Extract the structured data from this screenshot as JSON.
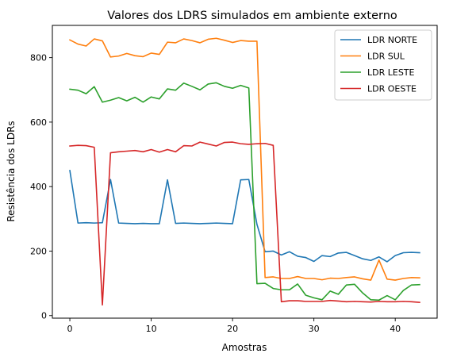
{
  "chart_data": {
    "type": "line",
    "title": "Valores dos LDRS simulados em ambiente externo",
    "xlabel": "Amostras",
    "ylabel": "Resistência dos LDRs",
    "xlim": [
      -2.15,
      45.15
    ],
    "ylim": [
      -8,
      900
    ],
    "xticks": [
      0,
      10,
      20,
      30,
      40
    ],
    "yticks": [
      0,
      200,
      400,
      600,
      800
    ],
    "grid": false,
    "legend_position": "top-right",
    "x": [
      0,
      1,
      2,
      3,
      4,
      5,
      6,
      7,
      8,
      9,
      10,
      11,
      12,
      13,
      14,
      15,
      16,
      17,
      18,
      19,
      20,
      21,
      22,
      23,
      24,
      25,
      26,
      27,
      28,
      29,
      30,
      31,
      32,
      33,
      34,
      35,
      36,
      37,
      38,
      39,
      40,
      41,
      42,
      43
    ],
    "series": [
      {
        "name": "LDR NORTE",
        "color": "#1f77b4",
        "values": [
          450,
          287,
          288,
          287,
          288,
          422,
          287,
          286,
          285,
          286,
          285,
          285,
          421,
          286,
          287,
          286,
          285,
          286,
          287,
          286,
          285,
          421,
          422,
          283,
          198,
          200,
          188,
          198,
          184,
          180,
          168,
          186,
          183,
          194,
          196,
          186,
          176,
          171,
          182,
          167,
          186,
          195,
          196,
          195
        ]
      },
      {
        "name": "LDR SUL",
        "color": "#ff7f0e",
        "values": [
          855,
          842,
          836,
          858,
          852,
          802,
          805,
          813,
          806,
          803,
          814,
          810,
          848,
          846,
          858,
          853,
          846,
          857,
          860,
          854,
          847,
          853,
          851,
          851,
          118,
          120,
          115,
          115,
          121,
          115,
          115,
          111,
          116,
          115,
          118,
          120,
          114,
          110,
          172,
          113,
          110,
          115,
          118,
          117
        ]
      },
      {
        "name": "LDR LESTE",
        "color": "#2ca02c",
        "values": [
          702,
          699,
          688,
          710,
          662,
          668,
          676,
          666,
          677,
          662,
          678,
          672,
          703,
          699,
          721,
          711,
          700,
          718,
          722,
          711,
          705,
          714,
          706,
          99,
          100,
          84,
          80,
          80,
          98,
          63,
          55,
          49,
          76,
          66,
          95,
          97,
          70,
          49,
          48,
          62,
          49,
          78,
          95,
          96
        ]
      },
      {
        "name": "LDR OESTE",
        "color": "#d62728",
        "values": [
          526,
          528,
          527,
          522,
          33,
          505,
          508,
          510,
          512,
          508,
          515,
          507,
          515,
          508,
          527,
          526,
          538,
          532,
          526,
          537,
          538,
          533,
          531,
          533,
          534,
          528,
          43,
          46,
          46,
          44,
          44,
          44,
          47,
          45,
          43,
          44,
          43,
          42,
          44,
          43,
          43,
          44,
          43,
          41
        ]
      }
    ]
  }
}
